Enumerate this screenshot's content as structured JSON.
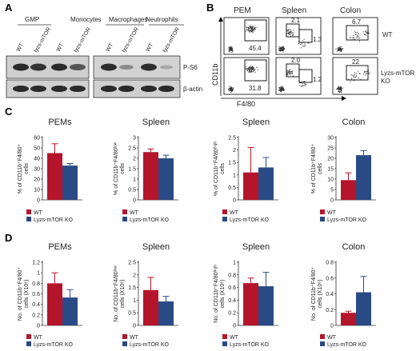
{
  "panels": {
    "A": "A",
    "B": "B",
    "C": "C",
    "D": "D"
  },
  "colors": {
    "wt": "#b5152b",
    "ko": "#2a4a85"
  },
  "western": {
    "groups": [
      "GMP",
      "Monocytes",
      "Macrophages",
      "Neutrophils"
    ],
    "lanes_left": [
      "WT",
      "lyzs-mTOR",
      "WT",
      "lyzs-mTOR"
    ],
    "lanes_right": [
      "WT",
      "lyzs-mTOR",
      "WT",
      "lyzs-mTOR"
    ],
    "band_labels": [
      "P-S6",
      "β-actin"
    ]
  },
  "flow": {
    "columns": [
      "PEM",
      "Spleen",
      "Colon"
    ],
    "rows": [
      "WT",
      "Lyzs-mTOR KO"
    ],
    "row_label_wt": "WT",
    "row_label_ko_1": "Lyzs-mTOR",
    "row_label_ko_2": "KO",
    "y_axis": "CD11b",
    "x_axis": "F4/80",
    "values": {
      "pem_wt": "45.4",
      "spleen_wt_hi": "2.1",
      "spleen_wt_lo": "1.3",
      "colon_wt": "6.7",
      "pem_ko": "31.8",
      "spleen_ko_hi": "2.0",
      "spleen_ko_lo": "1.2",
      "colon_ko": "22"
    }
  },
  "legend": {
    "wt": "WT",
    "ko": "Lyzs-mTOR KO"
  },
  "chart_data": [
    {
      "type": "bar",
      "panel": "C",
      "title": "PEMs",
      "ylabel_lines": [
        "% of CD11b⁺F4/80⁺",
        "cells"
      ],
      "ylim": [
        0,
        60
      ],
      "yticks": [
        0,
        10,
        20,
        30,
        40,
        50,
        60
      ],
      "series": [
        {
          "name": "WT",
          "values": [
            45
          ]
        },
        {
          "name": "Lyzs-mTOR KO",
          "values": [
            33
          ]
        }
      ],
      "errors": [
        9,
        2
      ]
    },
    {
      "type": "bar",
      "panel": "C",
      "title": "Spleen",
      "ylabel_lines": [
        "% of CD11b⁺F4/80ˡᵒʷ",
        "cells"
      ],
      "ylim": [
        0,
        3
      ],
      "yticks": [
        0,
        0.5,
        1,
        1.5,
        2,
        2.5,
        3
      ],
      "series": [
        {
          "name": "WT",
          "values": [
            2.3
          ]
        },
        {
          "name": "Lyzs-mTOR KO",
          "values": [
            2.0
          ]
        }
      ],
      "errors": [
        0.15,
        0.15
      ]
    },
    {
      "type": "bar",
      "panel": "C",
      "title": "Spleen",
      "ylabel_lines": [
        "% of CD11b⁺F4/80ʰⁱᵍʰ",
        "cells"
      ],
      "ylim": [
        0,
        2.5
      ],
      "yticks": [
        0,
        0.5,
        1,
        1.5,
        2,
        2.5
      ],
      "series": [
        {
          "name": "WT",
          "values": [
            1.1
          ]
        },
        {
          "name": "Lyzs-mTOR KO",
          "values": [
            1.3
          ]
        }
      ],
      "errors": [
        1.0,
        0.4
      ]
    },
    {
      "type": "bar",
      "panel": "C",
      "title": "Colon",
      "ylabel_lines": [
        "% of CD11b⁺F4/80⁺",
        "cells"
      ],
      "ylim": [
        0,
        30
      ],
      "yticks": [
        0,
        5,
        10,
        15,
        20,
        25,
        30
      ],
      "series": [
        {
          "name": "WT",
          "values": [
            9.5
          ]
        },
        {
          "name": "Lyzs-mTOR KO",
          "values": [
            21.5
          ]
        }
      ],
      "errors": [
        3.5,
        2.2
      ]
    },
    {
      "type": "bar",
      "panel": "D",
      "title": "PEMs",
      "ylabel_lines": [
        "No. of CD11b⁺F4/80⁺",
        "cells (X10⁶)"
      ],
      "ylim": [
        0,
        1.2
      ],
      "yticks": [
        0,
        0.2,
        0.4,
        0.6,
        0.8,
        1,
        1.2
      ],
      "series": [
        {
          "name": "WT",
          "values": [
            0.8
          ]
        },
        {
          "name": "Lyzs-mTOR KO",
          "values": [
            0.53
          ]
        }
      ],
      "errors": [
        0.2,
        0.15
      ]
    },
    {
      "type": "bar",
      "panel": "D",
      "title": "Spleen",
      "ylabel_lines": [
        "No. of CD11b⁺F4/80ˡᵒʷ",
        "cells (X10⁶)"
      ],
      "ylim": [
        0,
        2.5
      ],
      "yticks": [
        0,
        0.5,
        1,
        1.5,
        2,
        2.5
      ],
      "series": [
        {
          "name": "WT",
          "values": [
            1.4
          ]
        },
        {
          "name": "Lyzs-mTOR KO",
          "values": [
            0.95
          ]
        }
      ],
      "errors": [
        0.5,
        0.2
      ]
    },
    {
      "type": "bar",
      "panel": "D",
      "title": "Spleen",
      "ylabel_lines": [
        "No. of CD11b⁺F4/80ʰⁱᵍʰ",
        "cells (X10⁶)"
      ],
      "ylim": [
        0,
        1
      ],
      "yticks": [
        0,
        0.2,
        0.4,
        0.6,
        0.8,
        1
      ],
      "series": [
        {
          "name": "WT",
          "values": [
            0.67
          ]
        },
        {
          "name": "Lyzs-mTOR KO",
          "values": [
            0.62
          ]
        }
      ],
      "errors": [
        0.08,
        0.22
      ]
    },
    {
      "type": "bar",
      "panel": "D",
      "title": "Colon",
      "ylabel_lines": [
        "No. of CD11b⁺F4/80⁺",
        "cells (X10⁶)"
      ],
      "ylim": [
        0,
        0.8
      ],
      "yticks": [
        0,
        0.2,
        0.4,
        0.6,
        0.8
      ],
      "series": [
        {
          "name": "WT",
          "values": [
            0.16
          ]
        },
        {
          "name": "Lyzs-mTOR KO",
          "values": [
            0.42
          ]
        }
      ],
      "errors": [
        0.02,
        0.2
      ]
    }
  ]
}
